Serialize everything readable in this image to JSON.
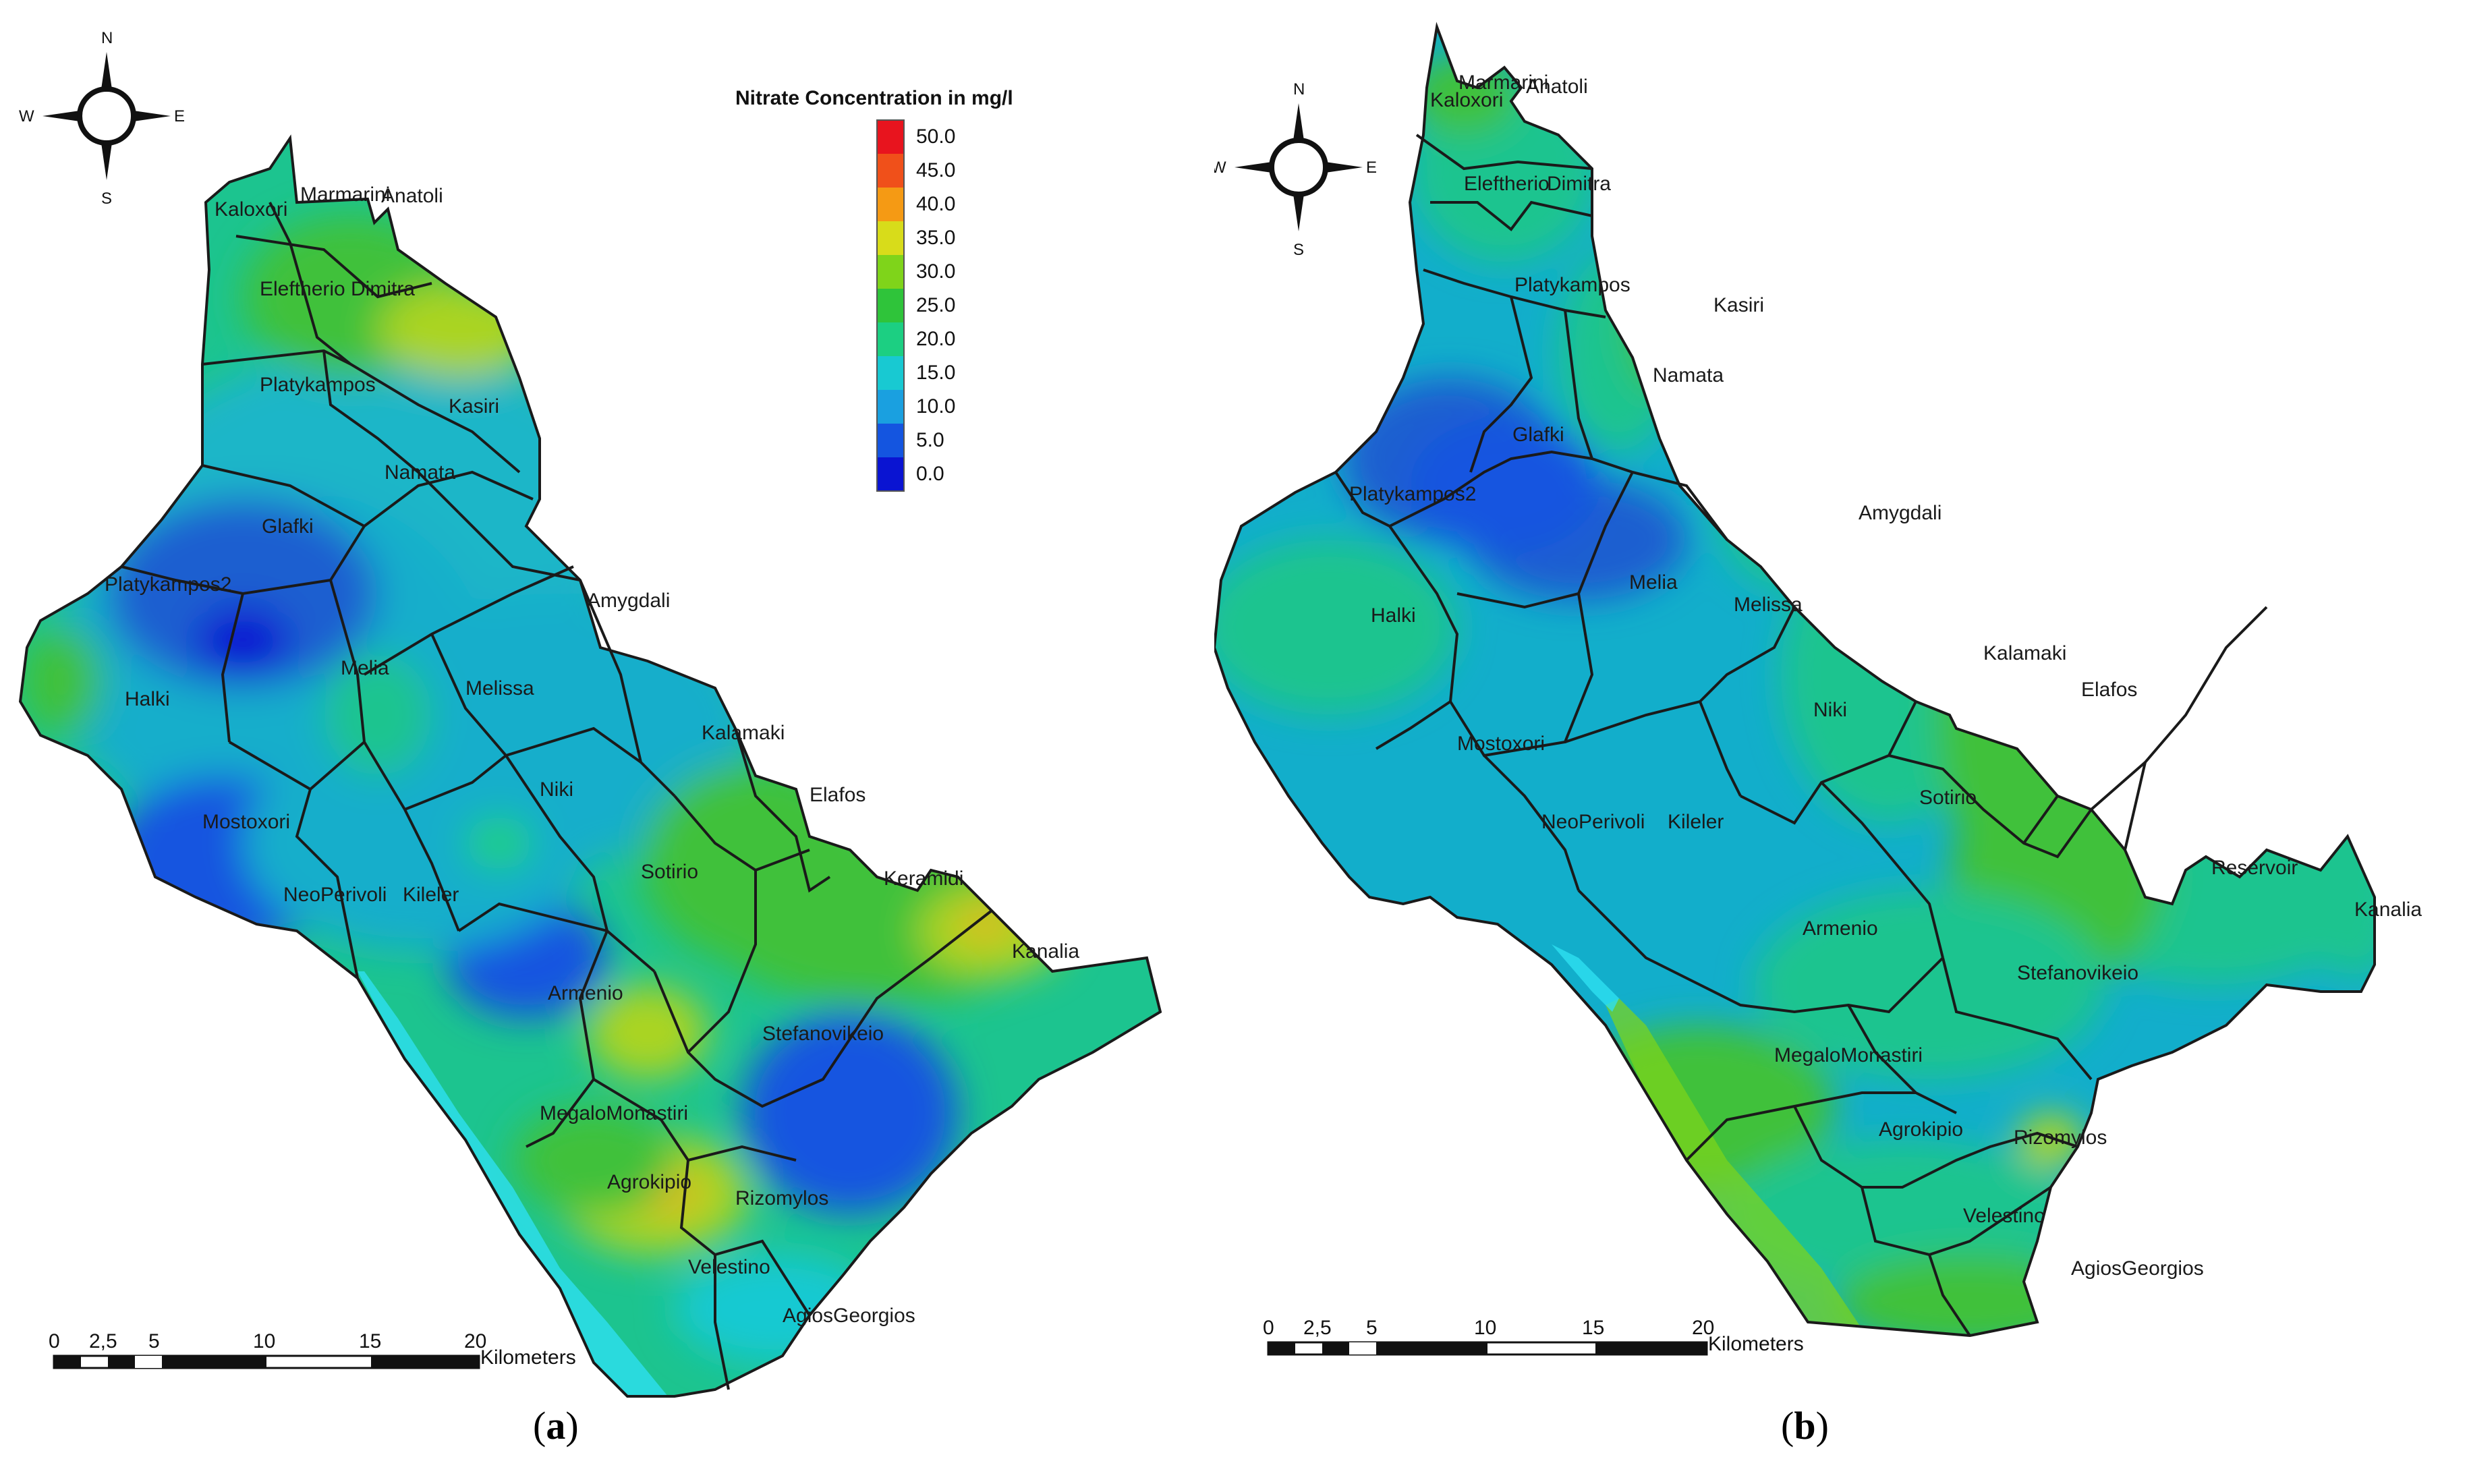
{
  "panels": [
    {
      "id": "a",
      "caption_letter": "a",
      "towns": [
        "Kaloxori",
        "Marmarini",
        "Anatoli",
        "Eleftherio",
        "Dimitra",
        "Platykampos",
        "Kasiri",
        "Namata",
        "Glafki",
        "Platykampos2",
        "Amygdali",
        "Halki",
        "Melia",
        "Melissa",
        "Kalamaki",
        "Niki",
        "Elafos",
        "Mostoxori",
        "Sotirio",
        "Keramidi",
        "NeoPerivoli",
        "Kileler",
        "Kanalia",
        "Armenio",
        "Stefanovikeio",
        "MegaloMonastiri",
        "Agrokipio",
        "Rizomylos",
        "Velestino",
        "AgiosGeorgios"
      ]
    },
    {
      "id": "b",
      "caption_letter": "b",
      "towns": [
        "Kaloxori",
        "Marmarini",
        "Anatoli",
        "Eleftherio",
        "Dimitra",
        "Platykampos",
        "Kasiri",
        "Namata",
        "Glafki",
        "Platykampos2",
        "Amygdali",
        "Halki",
        "Melia",
        "Melissa",
        "Kalamaki",
        "Elafos",
        "Niki",
        "Mostoxori",
        "Sotirio",
        "NeoPerivoli",
        "Kileler",
        "Reservoir",
        "Kanalia",
        "Armenio",
        "Stefanovikeio",
        "MegaloMonastiri",
        "Agrokipio",
        "Rizomylos",
        "Velestino",
        "AgiosGeorgios"
      ]
    }
  ],
  "compass": {
    "n": "N",
    "s": "S",
    "e": "E",
    "w": "W"
  },
  "scale_bar": {
    "ticks": [
      "0",
      "2,5",
      "5",
      "10",
      "15",
      "20"
    ],
    "unit": "Kilometers"
  },
  "legend": {
    "title": "Nitrate Concentration in mg/l",
    "classes": [
      {
        "label": "50.0",
        "color": "#e8141e"
      },
      {
        "label": "45.0",
        "color": "#f0501a"
      },
      {
        "label": "40.0",
        "color": "#f59a14"
      },
      {
        "label": "35.0",
        "color": "#d8dc1a"
      },
      {
        "label": "30.0",
        "color": "#7fd41a"
      },
      {
        "label": "25.0",
        "color": "#2fc43a"
      },
      {
        "label": "20.0",
        "color": "#1ccf82"
      },
      {
        "label": "15.0",
        "color": "#18c9d2"
      },
      {
        "label": "10.0",
        "color": "#1aa0e0"
      },
      {
        "label": "5.0",
        "color": "#1455e0"
      },
      {
        "label": "0.0",
        "color": "#0a14d2"
      }
    ]
  },
  "colors": {
    "very_low": "#0a3fcf",
    "low": "#1a5fd0",
    "mid_low": "#12aecb",
    "mid": "#1cc48f",
    "mid_high": "#3fc13b",
    "high": "#aad424",
    "very_high": "#e0b624",
    "coast": "#2ee0f0",
    "border": "#1a1a1a"
  }
}
